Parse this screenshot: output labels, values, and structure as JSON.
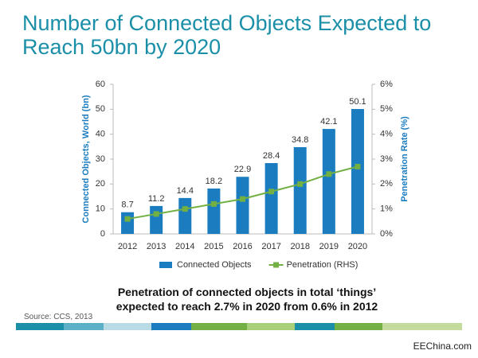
{
  "chart_data": {
    "type": "bar",
    "title": "Number of Connected Objects Expected to Reach 50bn by 2020",
    "annotation": "Penetration of connected objects in total ‘things’ expected to reach 2.7% in 2020 from 0.6% in 2012",
    "source": "Source: CCS, 2013",
    "watermark": "EEChina.com",
    "ylabel": "Connected Objects, World (bn)",
    "y2label": "Penetration Rate (%)",
    "categories": [
      "2012",
      "2013",
      "2014",
      "2015",
      "2016",
      "2017",
      "2018",
      "2019",
      "2020"
    ],
    "series": [
      {
        "name": "Connected Objects",
        "type": "bar",
        "color": "#1b7cc0",
        "values": [
          8.7,
          11.2,
          14.4,
          18.2,
          22.9,
          28.4,
          34.8,
          42.1,
          50.1
        ]
      },
      {
        "name": "Penetration (RHS)",
        "type": "line",
        "color": "#72b043",
        "axis": "y2",
        "values": [
          0.6,
          0.8,
          1.0,
          1.2,
          1.4,
          1.7,
          2.0,
          2.4,
          2.7
        ]
      }
    ],
    "ylim": [
      0,
      60
    ],
    "yticks": [
      0,
      10,
      20,
      30,
      40,
      50,
      60
    ],
    "y2lim": [
      0,
      6
    ],
    "y2ticks": [
      {
        "value": 0,
        "label": "0%"
      },
      {
        "value": 1,
        "label": "1%"
      },
      {
        "value": 2,
        "label": "2%"
      },
      {
        "value": 3,
        "label": "3%"
      },
      {
        "value": 4,
        "label": "4%"
      },
      {
        "value": 5,
        "label": "5%"
      },
      {
        "value": 6,
        "label": "6%"
      }
    ],
    "legend": "bottom"
  }
}
